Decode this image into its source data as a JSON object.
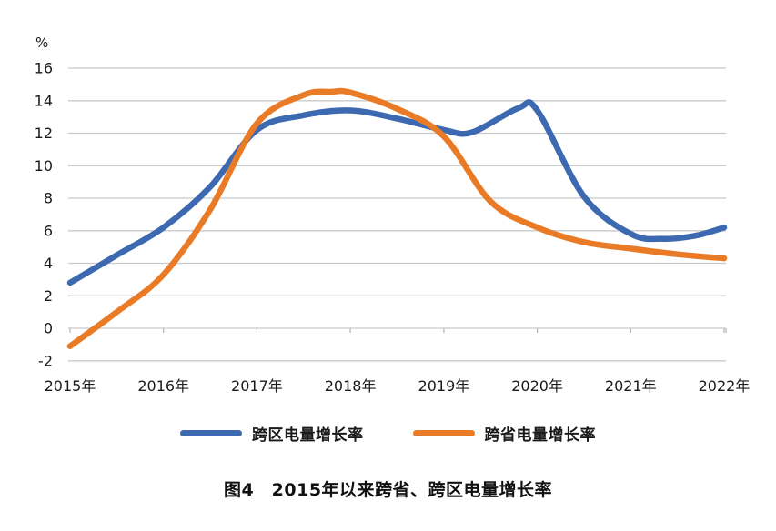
{
  "chart": {
    "unit_label": "%",
    "colors": {
      "grid": "#c9c9c9",
      "axis_tick": "#b9b9b9",
      "text": "#1a1a1a",
      "blue_series": "#3c69af",
      "orange_series": "#ea7b26"
    }
  },
  "chart_data": {
    "type": "line",
    "title": "图4　2015年以来跨省、跨区电量增长率",
    "unit": "%",
    "grid": true,
    "legend_position": "bottom",
    "x_categories": [
      "2015年",
      "2016年",
      "2017年",
      "2018年",
      "2019年",
      "2020年",
      "2021年",
      "2022年"
    ],
    "x_years": [
      2015,
      2016,
      2017,
      2018,
      2019,
      2020,
      2021,
      2022
    ],
    "y_ticks": [
      "16",
      "14",
      "12",
      "10",
      "8",
      "6",
      "4",
      "2",
      "0",
      "-2"
    ],
    "y_tick_values": [
      16,
      14,
      12,
      10,
      8,
      6,
      4,
      2,
      0,
      -2
    ],
    "ylim": [
      -2,
      16
    ],
    "series": [
      {
        "name": "跨区电量增长率",
        "color": "#3c69af",
        "values": [
          2.8,
          6.2,
          12.2,
          13.4,
          12.2,
          13.4,
          5.8,
          6.2
        ],
        "smooth_points": [
          [
            2015,
            2.8
          ],
          [
            2015.5,
            4.5
          ],
          [
            2016,
            6.2
          ],
          [
            2016.5,
            8.7
          ],
          [
            2017,
            12.2
          ],
          [
            2017.5,
            13.1
          ],
          [
            2018,
            13.4
          ],
          [
            2018.5,
            12.9
          ],
          [
            2019,
            12.2
          ],
          [
            2019.3,
            12.05
          ],
          [
            2019.8,
            13.55
          ],
          [
            2020,
            13.4
          ],
          [
            2020.5,
            8.1
          ],
          [
            2021,
            5.8
          ],
          [
            2021.35,
            5.5
          ],
          [
            2021.7,
            5.7
          ],
          [
            2022,
            6.2
          ]
        ]
      },
      {
        "name": "跨省电量增长率",
        "color": "#ea7b26",
        "values": [
          -1.1,
          3.3,
          12.8,
          14.5,
          11.8,
          6.2,
          4.9,
          4.3
        ],
        "smooth_points": [
          [
            2015,
            -1.1
          ],
          [
            2015.5,
            1.0
          ],
          [
            2016,
            3.3
          ],
          [
            2016.5,
            7.3
          ],
          [
            2017,
            12.6
          ],
          [
            2017.5,
            14.35
          ],
          [
            2017.8,
            14.55
          ],
          [
            2018,
            14.5
          ],
          [
            2018.5,
            13.5
          ],
          [
            2019,
            11.8
          ],
          [
            2019.5,
            7.8
          ],
          [
            2020,
            6.2
          ],
          [
            2020.5,
            5.3
          ],
          [
            2021,
            4.9
          ],
          [
            2021.5,
            4.55
          ],
          [
            2022,
            4.3
          ]
        ]
      }
    ]
  }
}
